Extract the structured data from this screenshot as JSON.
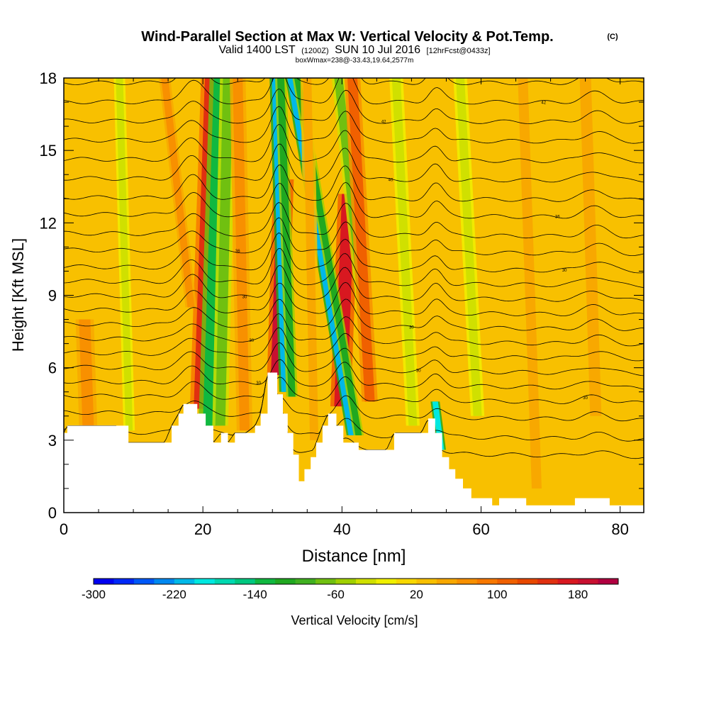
{
  "header": {
    "title": "Wind-Parallel Section at Max W: Vertical Velocity & Pot.Temp.",
    "copyright": "(C)",
    "valid_prefix": "Valid 1400 LST",
    "valid_utc": "(1200Z)",
    "valid_date": "SUN 10 Jul 2016",
    "forecast": "[12hrFcst@0433z]",
    "box_info": "boxWmax=238@-33.43,19.64,2577m"
  },
  "chart_data": {
    "type": "heatmap",
    "title": "Wind-Parallel Section at Max W: Vertical Velocity & Pot.Temp.",
    "xlabel": "Distance [nm]",
    "ylabel": "Height [Kft MSL]",
    "xlim": [
      0,
      83.4
    ],
    "ylim": [
      0,
      18
    ],
    "x_ticks": [
      "0",
      "20",
      "40",
      "60",
      "80"
    ],
    "x_tick_values": [
      0,
      20,
      40,
      60,
      80
    ],
    "y_ticks": [
      "0",
      "3",
      "6",
      "9",
      "12",
      "15",
      "18"
    ],
    "y_tick_values": [
      0,
      3,
      6,
      9,
      12,
      15,
      18
    ],
    "background_velocity": 20,
    "terrain": [
      {
        "x": 0,
        "h": 3.3
      },
      {
        "x": 0.5,
        "h": 3.6
      },
      {
        "x": 7.5,
        "h": 3.6
      },
      {
        "x": 9.3,
        "h": 2.9
      },
      {
        "x": 14.5,
        "h": 2.9
      },
      {
        "x": 15.5,
        "h": 3.6
      },
      {
        "x": 16.5,
        "h": 4.1
      },
      {
        "x": 17.2,
        "h": 4.5
      },
      {
        "x": 19.2,
        "h": 4.1
      },
      {
        "x": 20.4,
        "h": 3.6
      },
      {
        "x": 21.5,
        "h": 2.9
      },
      {
        "x": 22.6,
        "h": 3.3
      },
      {
        "x": 23.6,
        "h": 2.9
      },
      {
        "x": 24.6,
        "h": 3.3
      },
      {
        "x": 26.2,
        "h": 3.3
      },
      {
        "x": 27.5,
        "h": 3.6
      },
      {
        "x": 28.3,
        "h": 4.1
      },
      {
        "x": 29.3,
        "h": 5.8
      },
      {
        "x": 30.7,
        "h": 4.9
      },
      {
        "x": 31.5,
        "h": 4.1
      },
      {
        "x": 32.2,
        "h": 3.3
      },
      {
        "x": 33.0,
        "h": 2.4
      },
      {
        "x": 33.8,
        "h": 1.3
      },
      {
        "x": 34.6,
        "h": 1.8
      },
      {
        "x": 35.5,
        "h": 2.3
      },
      {
        "x": 36.3,
        "h": 2.9
      },
      {
        "x": 37.2,
        "h": 3.6
      },
      {
        "x": 38.0,
        "h": 4.1
      },
      {
        "x": 39.2,
        "h": 3.6
      },
      {
        "x": 40.2,
        "h": 2.9
      },
      {
        "x": 41.6,
        "h": 2.9
      },
      {
        "x": 42.4,
        "h": 2.6
      },
      {
        "x": 46.4,
        "h": 2.6
      },
      {
        "x": 47.5,
        "h": 3.3
      },
      {
        "x": 51.4,
        "h": 3.3
      },
      {
        "x": 52.4,
        "h": 3.9
      },
      {
        "x": 53.4,
        "h": 3.3
      },
      {
        "x": 54.4,
        "h": 2.3
      },
      {
        "x": 55.4,
        "h": 1.8
      },
      {
        "x": 56.3,
        "h": 1.4
      },
      {
        "x": 57.4,
        "h": 1.0
      },
      {
        "x": 58.6,
        "h": 0.6
      },
      {
        "x": 61.6,
        "h": 0.3
      },
      {
        "x": 62.6,
        "h": 0.6
      },
      {
        "x": 65.5,
        "h": 0.6
      },
      {
        "x": 66.5,
        "h": 0.3
      },
      {
        "x": 72.5,
        "h": 0.3
      },
      {
        "x": 73.5,
        "h": 0.6
      },
      {
        "x": 77.5,
        "h": 0.6
      },
      {
        "x": 78.5,
        "h": 0.3
      },
      {
        "x": 82.3,
        "h": 0.3
      },
      {
        "x": 83.4,
        "h": 0.5
      }
    ],
    "features": [
      {
        "x0": 19.6,
        "x1": 21.2,
        "y0": 4.3,
        "y1": 18,
        "w": 18,
        "v": 140
      },
      {
        "x0": 21.0,
        "x1": 22.6,
        "y0": 3.6,
        "y1": 18,
        "w": 20,
        "v": -130
      },
      {
        "x0": 22.5,
        "x1": 23.6,
        "y0": 3.6,
        "y1": 18,
        "w": 14,
        "v": -80
      },
      {
        "x0": 30.7,
        "x1": 31.6,
        "y0": 5.7,
        "y1": 13.8,
        "w": 18,
        "v": 195
      },
      {
        "x0": 31.8,
        "x1": 30.4,
        "y0": 5.0,
        "y1": 18,
        "w": 10,
        "v": -210
      },
      {
        "x0": 32.8,
        "x1": 31.2,
        "y0": 4.8,
        "y1": 18,
        "w": 10,
        "v": -120
      },
      {
        "x0": 39.8,
        "x1": 40.9,
        "y0": 4.4,
        "y1": 13.2,
        "w": 18,
        "v": 170
      },
      {
        "x0": 41.4,
        "x1": 32.6,
        "y0": 3.2,
        "y1": 18,
        "w": 9,
        "v": -215
      },
      {
        "x0": 42.4,
        "x1": 33.6,
        "y0": 3.2,
        "y1": 18,
        "w": 9,
        "v": -120
      },
      {
        "x0": 43.8,
        "x1": 39.5,
        "y0": 6.5,
        "y1": 18,
        "w": 12,
        "v": -80
      },
      {
        "x0": 44.0,
        "x1": 41.5,
        "y0": 4.6,
        "y1": 18,
        "w": 14,
        "v": 100
      },
      {
        "x0": 54.3,
        "x1": 53.4,
        "y0": 2.6,
        "y1": 4.6,
        "w": 8,
        "v": -200
      },
      {
        "x0": 18.3,
        "x1": 14.5,
        "y0": 8.5,
        "y1": 18,
        "w": 10,
        "v": 70
      },
      {
        "x0": 9.4,
        "x1": 8.0,
        "y0": 3.4,
        "y1": 18,
        "w": 10,
        "v": -40
      },
      {
        "x0": 50.2,
        "x1": 47.8,
        "y0": 3.6,
        "y1": 18,
        "w": 12,
        "v": -40
      },
      {
        "x0": 59.5,
        "x1": 57.0,
        "y0": 4.0,
        "y1": 18,
        "w": 12,
        "v": -35
      },
      {
        "x0": 3.5,
        "x1": 3.0,
        "y0": 3.6,
        "y1": 8.0,
        "w": 16,
        "v": 60
      },
      {
        "x0": 76.5,
        "x1": 75.0,
        "y0": 4.0,
        "y1": 18,
        "w": 16,
        "v": 55
      },
      {
        "x0": 68.0,
        "x1": 66.0,
        "y0": 1.0,
        "y1": 18,
        "w": 14,
        "v": 40
      },
      {
        "x0": 26.0,
        "x1": 25.0,
        "y0": 3.4,
        "y1": 18,
        "w": 14,
        "v": 70
      },
      {
        "x0": 36.0,
        "x1": 35.0,
        "y0": 3.0,
        "y1": 18,
        "w": 12,
        "v": 50
      }
    ],
    "isentropes": [
      {
        "base": 2.5,
        "label": ""
      },
      {
        "base": 3.2,
        "label": "34"
      },
      {
        "base": 4.0,
        "label": ""
      },
      {
        "base": 4.7,
        "label": "30"
      },
      {
        "base": 5.3,
        "label": "30"
      },
      {
        "base": 5.9,
        "label": "30"
      },
      {
        "base": 6.5,
        "label": ""
      },
      {
        "base": 7.1,
        "label": "30"
      },
      {
        "base": 7.7,
        "label": "30"
      },
      {
        "base": 8.3,
        "label": ""
      },
      {
        "base": 8.9,
        "label": "30"
      },
      {
        "base": 9.5,
        "label": ""
      },
      {
        "base": 10.1,
        "label": "30"
      },
      {
        "base": 10.8,
        "label": "36"
      },
      {
        "base": 11.5,
        "label": ""
      },
      {
        "base": 12.3,
        "label": "36"
      },
      {
        "base": 13.0,
        "label": ""
      },
      {
        "base": 13.8,
        "label": "40"
      },
      {
        "base": 14.6,
        "label": ""
      },
      {
        "base": 15.4,
        "label": ""
      },
      {
        "base": 16.2,
        "label": "42"
      },
      {
        "base": 17.0,
        "label": "42"
      },
      {
        "base": 17.8,
        "label": ""
      }
    ],
    "colorbar": {
      "label": "Vertical Velocity [cm/s]",
      "min": -300,
      "max": 220,
      "step": 20,
      "tick_labels": [
        "-300",
        "-220",
        "-140",
        "-60",
        "20",
        "100",
        "180"
      ],
      "tick_values": [
        -300,
        -220,
        -140,
        -60,
        20,
        100,
        180
      ],
      "colors": [
        "#0000f0",
        "#0028f8",
        "#0058f8",
        "#0088f0",
        "#00b8e8",
        "#00e8e0",
        "#00d8b0",
        "#00c880",
        "#10b840",
        "#20a820",
        "#40b020",
        "#70c010",
        "#a0d000",
        "#d0e000",
        "#f0f000",
        "#f8d800",
        "#f8c000",
        "#f8a800",
        "#f89000",
        "#f87800",
        "#f06000",
        "#e84800",
        "#e03010",
        "#d81820",
        "#c81030",
        "#b00040"
      ]
    }
  }
}
